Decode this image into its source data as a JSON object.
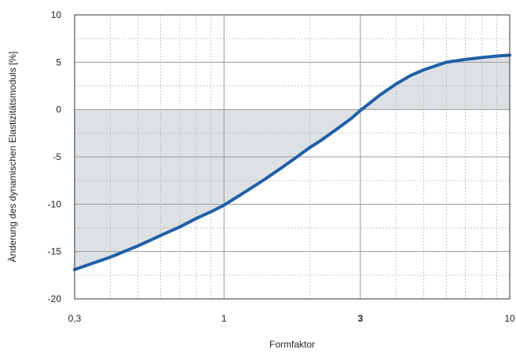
{
  "chart_data": {
    "type": "area",
    "title": "",
    "xlabel": "Formfaktor",
    "ylabel": "Änderung des dynamischen Elastizitätsmoduls [%]",
    "xscale": "log",
    "xlim": [
      0.3,
      10
    ],
    "ylim": [
      -20,
      10
    ],
    "grid": true,
    "x_ticks": [
      {
        "value": 0.3,
        "label": "0,3",
        "bold": false
      },
      {
        "value": 1,
        "label": "1",
        "bold": false
      },
      {
        "value": 3,
        "label": "3",
        "bold": true
      },
      {
        "value": 10,
        "label": "10",
        "bold": false
      }
    ],
    "y_ticks": [
      {
        "value": 10,
        "label": "10"
      },
      {
        "value": 5,
        "label": "5"
      },
      {
        "value": 0,
        "label": "0"
      },
      {
        "value": -5,
        "label": "-5"
      },
      {
        "value": -10,
        "label": "-10"
      },
      {
        "value": -15,
        "label": "-15"
      },
      {
        "value": -20,
        "label": "-20"
      }
    ],
    "series": [
      {
        "color": "#1f5fa6",
        "fill_color": "#dde1e4",
        "fill_baseline": 0,
        "x": [
          0.3,
          0.35,
          0.4,
          0.5,
          0.6,
          0.7,
          0.8,
          0.9,
          1.0,
          1.2,
          1.4,
          1.6,
          1.8,
          2.0,
          2.2,
          2.5,
          2.8,
          3.0,
          3.5,
          4.0,
          4.5,
          5.0,
          6.0,
          7.0,
          8.0,
          9.0,
          10.0
        ],
        "y": [
          -16.9,
          -16.2,
          -15.6,
          -14.4,
          -13.3,
          -12.4,
          -11.5,
          -10.8,
          -10.1,
          -8.6,
          -7.3,
          -6.1,
          -5.0,
          -4.0,
          -3.2,
          -2.0,
          -0.9,
          -0.1,
          1.5,
          2.7,
          3.6,
          4.2,
          5.0,
          5.3,
          5.5,
          5.65,
          5.75
        ]
      }
    ]
  },
  "colors": {
    "plot_background": "#ffffff",
    "area_fill": "#dde1e4",
    "line": "#1f5fa6",
    "major_grid": "#9a9a9a",
    "minor_grid": "#b0b0b0",
    "frame": "#333333"
  }
}
